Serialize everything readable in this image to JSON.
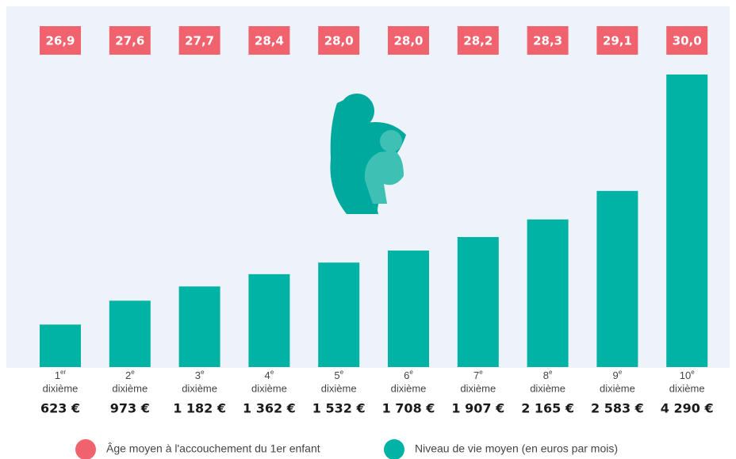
{
  "chart_data": {
    "type": "bar",
    "categories": [
      {
        "rank": "1",
        "suffix": "er",
        "unit": "dixième"
      },
      {
        "rank": "2",
        "suffix": "e",
        "unit": "dixième"
      },
      {
        "rank": "3",
        "suffix": "e",
        "unit": "dixième"
      },
      {
        "rank": "4",
        "suffix": "e",
        "unit": "dixième"
      },
      {
        "rank": "5",
        "suffix": "e",
        "unit": "dixième"
      },
      {
        "rank": "6",
        "suffix": "e",
        "unit": "dixième"
      },
      {
        "rank": "7",
        "suffix": "e",
        "unit": "dixième"
      },
      {
        "rank": "8",
        "suffix": "e",
        "unit": "dixième"
      },
      {
        "rank": "9",
        "suffix": "e",
        "unit": "dixième"
      },
      {
        "rank": "10",
        "suffix": "e",
        "unit": "dixième"
      }
    ],
    "series": [
      {
        "name": "Âge moyen à l'accouchement du 1er enfant",
        "color": "#f0636e",
        "values": [
          26.9,
          27.6,
          27.7,
          28.4,
          28.0,
          28.0,
          28.2,
          28.3,
          29.1,
          30.0
        ],
        "value_labels": [
          "26,9",
          "27,6",
          "27,7",
          "28,4",
          "28,0",
          "28,0",
          "28,2",
          "28,3",
          "29,1",
          "30,0"
        ]
      },
      {
        "name": "Niveau de vie moyen (en euros par mois)",
        "color": "#00b3a4",
        "values": [
          623,
          973,
          1182,
          1362,
          1532,
          1708,
          1907,
          2165,
          2583,
          4290
        ],
        "value_labels": [
          "623 €",
          "973 €",
          "1 182 €",
          "1 362 €",
          "1 532 €",
          "1 708 €",
          "1 907 €",
          "2 165 €",
          "2 583 €",
          "4 290 €"
        ]
      }
    ]
  }
}
